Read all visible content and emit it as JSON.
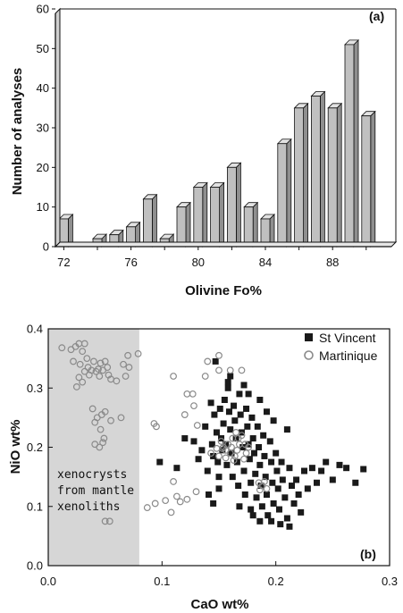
{
  "chart_data": [
    {
      "type": "bar",
      "panel_label": "(a)",
      "xlabel": "Olivine Fo%",
      "ylabel": "Number of analyses",
      "ylim": [
        0,
        60
      ],
      "yticks": [
        0,
        10,
        20,
        30,
        40,
        50,
        60
      ],
      "xlim": [
        71.5,
        91.5
      ],
      "xticks": [
        72,
        76,
        80,
        84,
        88
      ],
      "bar_color": "#c0c0c0",
      "x": [
        72,
        73,
        74,
        75,
        76,
        77,
        78,
        79,
        80,
        81,
        82,
        83,
        84,
        85,
        86,
        87,
        88,
        89,
        90
      ],
      "values": [
        7,
        0,
        2,
        3,
        5,
        12,
        2,
        10,
        15,
        15,
        20,
        10,
        7,
        26,
        35,
        38,
        35,
        51,
        33
      ]
    },
    {
      "type": "scatter",
      "panel_label": "(b)",
      "xlabel": "CaO wt%",
      "ylabel": "NiO wt%",
      "xlim": [
        0,
        0.3
      ],
      "ylim": [
        0,
        0.4
      ],
      "xticks": [
        "0.0",
        "0.1",
        "0.2",
        "0.3"
      ],
      "yticks": [
        "0.0",
        "0.1",
        "0.2",
        "0.3",
        "0.4"
      ],
      "legend_position": "top-right",
      "shaded_region": {
        "x": [
          0,
          0.08
        ],
        "color": "#d6d6d6",
        "label": [
          "xenocrysts",
          "from mantle",
          "xenoliths"
        ]
      },
      "series": [
        {
          "name": "St Vincent",
          "marker": "filled-square",
          "color": "#1a1a1a",
          "points": [
            [
              0.098,
              0.175
            ],
            [
              0.113,
              0.165
            ],
            [
              0.12,
              0.215
            ],
            [
              0.128,
              0.21
            ],
            [
              0.132,
              0.18
            ],
            [
              0.135,
              0.195
            ],
            [
              0.138,
              0.235
            ],
            [
              0.14,
              0.16
            ],
            [
              0.141,
              0.12
            ],
            [
              0.143,
              0.275
            ],
            [
              0.144,
              0.205
            ],
            [
              0.145,
              0.185
            ],
            [
              0.146,
              0.255
            ],
            [
              0.147,
              0.345
            ],
            [
              0.148,
              0.225
            ],
            [
              0.149,
              0.175
            ],
            [
              0.15,
              0.15
            ],
            [
              0.151,
              0.265
            ],
            [
              0.152,
              0.215
            ],
            [
              0.153,
              0.195
            ],
            [
              0.154,
              0.24
            ],
            [
              0.155,
              0.28
            ],
            [
              0.156,
              0.205
            ],
            [
              0.157,
              0.17
            ],
            [
              0.158,
              0.3
            ],
            [
              0.159,
              0.26
            ],
            [
              0.16,
              0.23
            ],
            [
              0.161,
              0.19
            ],
            [
              0.162,
              0.15
            ],
            [
              0.163,
              0.27
            ],
            [
              0.164,
              0.245
            ],
            [
              0.165,
              0.215
            ],
            [
              0.166,
              0.175
            ],
            [
              0.167,
              0.135
            ],
            [
              0.168,
              0.29
            ],
            [
              0.169,
              0.255
            ],
            [
              0.17,
              0.225
            ],
            [
              0.171,
              0.2
            ],
            [
              0.172,
              0.16
            ],
            [
              0.173,
              0.12
            ],
            [
              0.174,
              0.265
            ],
            [
              0.175,
              0.235
            ],
            [
              0.176,
              0.205
            ],
            [
              0.177,
              0.18
            ],
            [
              0.178,
              0.14
            ],
            [
              0.179,
              0.25
            ],
            [
              0.18,
              0.215
            ],
            [
              0.181,
              0.19
            ],
            [
              0.182,
              0.155
            ],
            [
              0.183,
              0.115
            ],
            [
              0.184,
              0.235
            ],
            [
              0.185,
              0.2
            ],
            [
              0.186,
              0.17
            ],
            [
              0.187,
              0.135
            ],
            [
              0.188,
              0.1
            ],
            [
              0.189,
              0.22
            ],
            [
              0.19,
              0.185
            ],
            [
              0.191,
              0.15
            ],
            [
              0.192,
              0.12
            ],
            [
              0.193,
              0.085
            ],
            [
              0.195,
              0.21
            ],
            [
              0.196,
              0.175
            ],
            [
              0.197,
              0.14
            ],
            [
              0.198,
              0.105
            ],
            [
              0.2,
              0.19
            ],
            [
              0.201,
              0.16
            ],
            [
              0.202,
              0.13
            ],
            [
              0.203,
              0.095
            ],
            [
              0.205,
              0.175
            ],
            [
              0.206,
              0.145
            ],
            [
              0.208,
              0.115
            ],
            [
              0.21,
              0.08
            ],
            [
              0.212,
              0.165
            ],
            [
              0.214,
              0.135
            ],
            [
              0.216,
              0.105
            ],
            [
              0.218,
              0.145
            ],
            [
              0.22,
              0.12
            ],
            [
              0.222,
              0.09
            ],
            [
              0.225,
              0.16
            ],
            [
              0.228,
              0.13
            ],
            [
              0.232,
              0.165
            ],
            [
              0.236,
              0.14
            ],
            [
              0.24,
              0.16
            ],
            [
              0.244,
              0.175
            ],
            [
              0.25,
              0.145
            ],
            [
              0.256,
              0.17
            ],
            [
              0.262,
              0.165
            ],
            [
              0.27,
              0.14
            ],
            [
              0.277,
              0.163
            ],
            [
              0.158,
              0.31
            ],
            [
              0.172,
              0.305
            ],
            [
              0.186,
              0.28
            ],
            [
              0.16,
              0.32
            ],
            [
              0.176,
              0.29
            ],
            [
              0.198,
              0.245
            ],
            [
              0.21,
              0.23
            ],
            [
              0.192,
              0.26
            ],
            [
              0.168,
              0.1
            ],
            [
              0.178,
              0.095
            ],
            [
              0.186,
              0.075
            ],
            [
              0.196,
              0.075
            ],
            [
              0.204,
              0.07
            ],
            [
              0.212,
              0.066
            ],
            [
              0.18,
              0.085
            ],
            [
              0.15,
              0.13
            ],
            [
              0.145,
              0.105
            ]
          ]
        },
        {
          "name": "Martinique",
          "marker": "open-circle",
          "color": "#8a8a8a",
          "points": [
            [
              0.012,
              0.368
            ],
            [
              0.02,
              0.365
            ],
            [
              0.024,
              0.37
            ],
            [
              0.027,
              0.375
            ],
            [
              0.032,
              0.375
            ],
            [
              0.03,
              0.362
            ],
            [
              0.022,
              0.345
            ],
            [
              0.028,
              0.34
            ],
            [
              0.034,
              0.35
            ],
            [
              0.04,
              0.345
            ],
            [
              0.046,
              0.342
            ],
            [
              0.05,
              0.345
            ],
            [
              0.035,
              0.335
            ],
            [
              0.038,
              0.33
            ],
            [
              0.042,
              0.328
            ],
            [
              0.045,
              0.32
            ],
            [
              0.048,
              0.33
            ],
            [
              0.052,
              0.335
            ],
            [
              0.055,
              0.315
            ],
            [
              0.032,
              0.328
            ],
            [
              0.027,
              0.318
            ],
            [
              0.03,
              0.31
            ],
            [
              0.025,
              0.302
            ],
            [
              0.036,
              0.322
            ],
            [
              0.044,
              0.332
            ],
            [
              0.053,
              0.322
            ],
            [
              0.068,
              0.32
            ],
            [
              0.07,
              0.355
            ],
            [
              0.066,
              0.34
            ],
            [
              0.039,
              0.265
            ],
            [
              0.043,
              0.25
            ],
            [
              0.047,
              0.255
            ],
            [
              0.05,
              0.26
            ],
            [
              0.041,
              0.242
            ],
            [
              0.046,
              0.23
            ],
            [
              0.049,
              0.215
            ],
            [
              0.041,
              0.205
            ],
            [
              0.045,
              0.2
            ],
            [
              0.048,
              0.208
            ],
            [
              0.055,
              0.245
            ],
            [
              0.064,
              0.25
            ],
            [
              0.05,
              0.075
            ],
            [
              0.054,
              0.075
            ],
            [
              0.087,
              0.098
            ],
            [
              0.094,
              0.105
            ],
            [
              0.103,
              0.11
            ],
            [
              0.108,
              0.09
            ],
            [
              0.113,
              0.117
            ],
            [
              0.116,
              0.108
            ],
            [
              0.122,
              0.112
            ],
            [
              0.13,
              0.125
            ],
            [
              0.11,
              0.142
            ],
            [
              0.095,
              0.235
            ],
            [
              0.093,
              0.24
            ],
            [
              0.11,
              0.32
            ],
            [
              0.122,
              0.29
            ],
            [
              0.127,
              0.29
            ],
            [
              0.128,
              0.27
            ],
            [
              0.131,
              0.237
            ],
            [
              0.12,
              0.255
            ],
            [
              0.138,
              0.32
            ],
            [
              0.15,
              0.33
            ],
            [
              0.16,
              0.33
            ],
            [
              0.17,
              0.33
            ],
            [
              0.14,
              0.345
            ],
            [
              0.15,
              0.355
            ],
            [
              0.143,
              0.19
            ],
            [
              0.15,
              0.185
            ],
            [
              0.154,
              0.2
            ],
            [
              0.156,
              0.195
            ],
            [
              0.158,
              0.205
            ],
            [
              0.16,
              0.19
            ],
            [
              0.162,
              0.215
            ],
            [
              0.164,
              0.185
            ],
            [
              0.166,
              0.195
            ],
            [
              0.168,
              0.205
            ],
            [
              0.17,
              0.22
            ],
            [
              0.172,
              0.18
            ],
            [
              0.174,
              0.19
            ],
            [
              0.176,
              0.2
            ],
            [
              0.152,
              0.21
            ],
            [
              0.148,
              0.198
            ],
            [
              0.165,
              0.225
            ],
            [
              0.185,
              0.14
            ],
            [
              0.188,
              0.135
            ],
            [
              0.19,
              0.142
            ],
            [
              0.192,
              0.13
            ],
            [
              0.186,
              0.128
            ],
            [
              0.153,
              0.198
            ],
            [
              0.161,
              0.2
            ],
            [
              0.167,
              0.215
            ],
            [
              0.173,
              0.205
            ],
            [
              0.163,
              0.178
            ],
            [
              0.156,
              0.182
            ],
            [
              0.079,
              0.358
            ],
            [
              0.071,
              0.335
            ],
            [
              0.06,
              0.312
            ]
          ]
        }
      ]
    }
  ]
}
